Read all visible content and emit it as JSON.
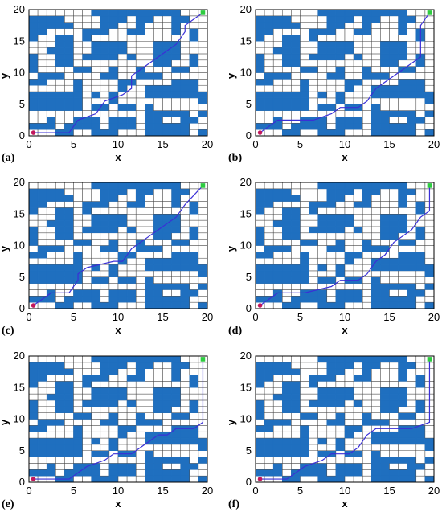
{
  "colors": {
    "obstacle": "#1f6fbf",
    "path": "#3a2fd6",
    "start": "#c2185b",
    "goal": "#2ecc40"
  },
  "axes": {
    "xlabel": "x",
    "ylabel": "y",
    "ticks": [
      "0",
      "5",
      "10",
      "15",
      "20"
    ],
    "range": [
      0,
      20
    ]
  },
  "start": [
    0.5,
    0.5
  ],
  "goal": [
    19.5,
    19.5
  ],
  "obstacles": [
    [
      0,
      18
    ],
    [
      1,
      18
    ],
    [
      2,
      18
    ],
    [
      0,
      17
    ],
    [
      1,
      17
    ],
    [
      2,
      17
    ],
    [
      0,
      16
    ],
    [
      1,
      16
    ],
    [
      0,
      15
    ],
    [
      0,
      12
    ],
    [
      0,
      11
    ],
    [
      0,
      10
    ],
    [
      3,
      18
    ],
    [
      3,
      17
    ],
    [
      4,
      17
    ],
    [
      7,
      19
    ],
    [
      8,
      19
    ],
    [
      9,
      19
    ],
    [
      10,
      19
    ],
    [
      11,
      19
    ],
    [
      12,
      19
    ],
    [
      13,
      19
    ],
    [
      14,
      19
    ],
    [
      15,
      19
    ],
    [
      16,
      19
    ],
    [
      8,
      18
    ],
    [
      9,
      18
    ],
    [
      10,
      18
    ],
    [
      8,
      17
    ],
    [
      9,
      17
    ],
    [
      8,
      16
    ],
    [
      12,
      18
    ],
    [
      13,
      18
    ],
    [
      12,
      17
    ],
    [
      16,
      18
    ],
    [
      17,
      18
    ],
    [
      16,
      17
    ],
    [
      16,
      16
    ],
    [
      18,
      16
    ],
    [
      18,
      15
    ],
    [
      6,
      16
    ],
    [
      7,
      16
    ],
    [
      6,
      15
    ],
    [
      11,
      16
    ],
    [
      12,
      16
    ],
    [
      3,
      15
    ],
    [
      4,
      15
    ],
    [
      3,
      14
    ],
    [
      4,
      14
    ],
    [
      3,
      13
    ],
    [
      4,
      13
    ],
    [
      3,
      12
    ],
    [
      4,
      12
    ],
    [
      3,
      11
    ],
    [
      4,
      11
    ],
    [
      7,
      14
    ],
    [
      8,
      14
    ],
    [
      9,
      14
    ],
    [
      10,
      14
    ],
    [
      7,
      13
    ],
    [
      8,
      13
    ],
    [
      9,
      13
    ],
    [
      10,
      13
    ],
    [
      7,
      12
    ],
    [
      8,
      12
    ],
    [
      9,
      12
    ],
    [
      14,
      14
    ],
    [
      15,
      14
    ],
    [
      16,
      14
    ],
    [
      14,
      13
    ],
    [
      15,
      13
    ],
    [
      16,
      13
    ],
    [
      14,
      12
    ],
    [
      15,
      12
    ],
    [
      16,
      12
    ],
    [
      14,
      11
    ],
    [
      15,
      11
    ],
    [
      2,
      13
    ],
    [
      6,
      12
    ],
    [
      11,
      12
    ],
    [
      18,
      12
    ],
    [
      18,
      11
    ],
    [
      5,
      10
    ],
    [
      6,
      10
    ],
    [
      12,
      10
    ],
    [
      12,
      9
    ],
    [
      13,
      9
    ],
    [
      9,
      10
    ],
    [
      9,
      9
    ],
    [
      8,
      9
    ],
    [
      1,
      9
    ],
    [
      2,
      9
    ],
    [
      3,
      9
    ],
    [
      16,
      10
    ],
    [
      17,
      10
    ],
    [
      0,
      8
    ],
    [
      1,
      8
    ],
    [
      5,
      8
    ],
    [
      5,
      7
    ],
    [
      14,
      9
    ],
    [
      17,
      8
    ],
    [
      18,
      8
    ],
    [
      16,
      8
    ],
    [
      10,
      8
    ],
    [
      11,
      8
    ],
    [
      10,
      7
    ],
    [
      13,
      7
    ],
    [
      14,
      7
    ],
    [
      15,
      7
    ],
    [
      16,
      7
    ],
    [
      17,
      7
    ],
    [
      18,
      7
    ],
    [
      13,
      6
    ],
    [
      14,
      6
    ],
    [
      15,
      6
    ],
    [
      16,
      6
    ],
    [
      17,
      6
    ],
    [
      18,
      6
    ],
    [
      0,
      6
    ],
    [
      1,
      6
    ],
    [
      2,
      6
    ],
    [
      3,
      6
    ],
    [
      4,
      6
    ],
    [
      5,
      6
    ],
    [
      0,
      5
    ],
    [
      1,
      5
    ],
    [
      2,
      5
    ],
    [
      3,
      5
    ],
    [
      4,
      5
    ],
    [
      5,
      5
    ],
    [
      0,
      4
    ],
    [
      1,
      4
    ],
    [
      2,
      4
    ],
    [
      3,
      4
    ],
    [
      4,
      4
    ],
    [
      5,
      4
    ],
    [
      7,
      6
    ],
    [
      9,
      6
    ],
    [
      9,
      5
    ],
    [
      7,
      4
    ],
    [
      8,
      4
    ],
    [
      10,
      4
    ],
    [
      11,
      4
    ],
    [
      13,
      4
    ],
    [
      19,
      6
    ],
    [
      19,
      5
    ],
    [
      19,
      3
    ],
    [
      2,
      2
    ],
    [
      5,
      2
    ],
    [
      6,
      2
    ],
    [
      7,
      2
    ],
    [
      9,
      2
    ],
    [
      10,
      2
    ],
    [
      11,
      2
    ],
    [
      13,
      2
    ],
    [
      14,
      2
    ],
    [
      17,
      2
    ],
    [
      0,
      1
    ],
    [
      1,
      1
    ],
    [
      2,
      1
    ],
    [
      4,
      1
    ],
    [
      5,
      1
    ],
    [
      6,
      1
    ],
    [
      7,
      1
    ],
    [
      9,
      1
    ],
    [
      10,
      1
    ],
    [
      11,
      1
    ],
    [
      13,
      1
    ],
    [
      14,
      1
    ],
    [
      15,
      1
    ],
    [
      16,
      1
    ],
    [
      17,
      1
    ],
    [
      13,
      0
    ],
    [
      14,
      0
    ],
    [
      15,
      0
    ],
    [
      16,
      0
    ],
    [
      17,
      0
    ],
    [
      3,
      0
    ],
    [
      4,
      0
    ],
    [
      7,
      0
    ],
    [
      8,
      0
    ],
    [
      9,
      0
    ],
    [
      19,
      0
    ],
    [
      13,
      3
    ],
    [
      14,
      3
    ],
    [
      15,
      3
    ],
    [
      16,
      3
    ],
    [
      17,
      3
    ],
    [
      18,
      2
    ]
  ],
  "panels": [
    {
      "label": "(a)",
      "path": [
        [
          0.5,
          0.5
        ],
        [
          4.5,
          0.5
        ],
        [
          5.5,
          2.5
        ],
        [
          7.5,
          3.5
        ],
        [
          8.5,
          5.5
        ],
        [
          10.5,
          6.5
        ],
        [
          11.5,
          7.5
        ],
        [
          11.5,
          9.5
        ],
        [
          13.5,
          11.5
        ],
        [
          14.5,
          12.5
        ],
        [
          16.5,
          14.5
        ],
        [
          17.5,
          16.5
        ],
        [
          17.5,
          17.5
        ],
        [
          18.5,
          18.5
        ],
        [
          19.5,
          19.5
        ]
      ]
    },
    {
      "label": "(b)",
      "path": [
        [
          0.5,
          0.5
        ],
        [
          2.5,
          2.5
        ],
        [
          6.5,
          2.5
        ],
        [
          8.5,
          3.5
        ],
        [
          9.5,
          4.5
        ],
        [
          11.5,
          4.5
        ],
        [
          12.5,
          5.5
        ],
        [
          13.5,
          7.5
        ],
        [
          14.5,
          8.5
        ],
        [
          16.5,
          10.5
        ],
        [
          18.5,
          12.5
        ],
        [
          18.5,
          17.5
        ],
        [
          19.5,
          19.5
        ]
      ]
    },
    {
      "label": "(c)",
      "path": [
        [
          0.5,
          0.5
        ],
        [
          2.5,
          2.5
        ],
        [
          4.5,
          2.5
        ],
        [
          5.5,
          4.5
        ],
        [
          5.5,
          5.5
        ],
        [
          6.5,
          6.5
        ],
        [
          9.5,
          7.5
        ],
        [
          10.5,
          7.5
        ],
        [
          11.5,
          9.5
        ],
        [
          12.5,
          10.5
        ],
        [
          14.5,
          12.5
        ],
        [
          16.5,
          14.5
        ],
        [
          17.5,
          16.5
        ],
        [
          19.5,
          19.5
        ]
      ]
    },
    {
      "label": "(d)",
      "path": [
        [
          0.5,
          0.5
        ],
        [
          2.5,
          2.5
        ],
        [
          5.5,
          2.5
        ],
        [
          8.5,
          3.5
        ],
        [
          9.5,
          4.5
        ],
        [
          11.5,
          4.5
        ],
        [
          12.5,
          5.5
        ],
        [
          13.5,
          7.5
        ],
        [
          14.5,
          8.5
        ],
        [
          15.5,
          10.5
        ],
        [
          17.5,
          12.5
        ],
        [
          18.5,
          14.5
        ],
        [
          19.5,
          15.5
        ],
        [
          19.5,
          19.5
        ]
      ]
    },
    {
      "label": "(e)",
      "path": [
        [
          0.5,
          0.5
        ],
        [
          4.5,
          0.5
        ],
        [
          6.5,
          2.5
        ],
        [
          8.5,
          3.5
        ],
        [
          9.5,
          4.5
        ],
        [
          11.5,
          4.5
        ],
        [
          13.5,
          6.5
        ],
        [
          14.5,
          7.5
        ],
        [
          15.5,
          7.5
        ],
        [
          16.5,
          8.5
        ],
        [
          18.5,
          8.5
        ],
        [
          19.5,
          9.5
        ],
        [
          19.5,
          19.5
        ]
      ]
    },
    {
      "label": "(f)",
      "path": [
        [
          0.5,
          0.5
        ],
        [
          3.5,
          0.5
        ],
        [
          5.5,
          2.5
        ],
        [
          7.5,
          3.5
        ],
        [
          8.5,
          4.5
        ],
        [
          10.5,
          4.5
        ],
        [
          11.5,
          5.5
        ],
        [
          12.5,
          7.5
        ],
        [
          13.5,
          8.5
        ],
        [
          17.5,
          8.5
        ],
        [
          19.5,
          9.5
        ],
        [
          19.5,
          19.5
        ]
      ]
    }
  ]
}
